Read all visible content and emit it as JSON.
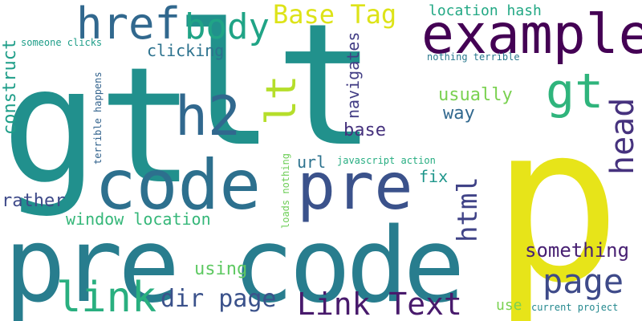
{
  "words": [
    {
      "text": "gt",
      "color": "#21908d",
      "vertical": false
    },
    {
      "text": "lt",
      "color": "#21918c",
      "vertical": false
    },
    {
      "text": "p",
      "color": "#e7e419",
      "vertical": false
    },
    {
      "text": "pre code",
      "color": "#287d8e",
      "vertical": false
    },
    {
      "text": "example",
      "color": "#440154",
      "vertical": false
    },
    {
      "text": "code",
      "color": "#2d708e",
      "vertical": false
    },
    {
      "text": "pre",
      "color": "#3b528b",
      "vertical": false
    },
    {
      "text": "h2",
      "color": "#31688e",
      "vertical": false
    },
    {
      "text": "href",
      "color": "#31688e",
      "vertical": false
    },
    {
      "text": "body",
      "color": "#20a486",
      "vertical": false
    },
    {
      "text": "Base Tag",
      "color": "#dde318",
      "vertical": false
    },
    {
      "text": "location hash",
      "color": "#22a884",
      "vertical": false
    },
    {
      "text": "gt",
      "color": "#2fb47c",
      "vertical": false
    },
    {
      "text": "lt",
      "color": "#b5de2b",
      "vertical": true
    },
    {
      "text": "head",
      "color": "#46327e",
      "vertical": true
    },
    {
      "text": "html",
      "color": "#404387",
      "vertical": true
    },
    {
      "text": "page",
      "color": "#3e4a89",
      "vertical": false
    },
    {
      "text": "link",
      "color": "#29af7f",
      "vertical": false
    },
    {
      "text": "Link Text",
      "color": "#481a6c",
      "vertical": false
    },
    {
      "text": "dir page",
      "color": "#3b528b",
      "vertical": false
    },
    {
      "text": "something",
      "color": "#482173",
      "vertical": false
    },
    {
      "text": "window location",
      "color": "#35b779",
      "vertical": false
    },
    {
      "text": "rather",
      "color": "#3e4a89",
      "vertical": false
    },
    {
      "text": "construct",
      "color": "#1f9e89",
      "vertical": true
    },
    {
      "text": "clicking",
      "color": "#2c728e",
      "vertical": false
    },
    {
      "text": "navigates",
      "color": "#433e85",
      "vertical": true
    },
    {
      "text": "usually",
      "color": "#7ad151",
      "vertical": false
    },
    {
      "text": "way",
      "color": "#31688e",
      "vertical": false
    },
    {
      "text": "base",
      "color": "#46327e",
      "vertical": false
    },
    {
      "text": "url",
      "color": "#2c728e",
      "vertical": false
    },
    {
      "text": "fix",
      "color": "#1f968b",
      "vertical": false
    },
    {
      "text": "using",
      "color": "#5ec962",
      "vertical": false
    },
    {
      "text": "use",
      "color": "#7ad151",
      "vertical": false
    },
    {
      "text": "current project",
      "color": "#23888e",
      "vertical": false
    },
    {
      "text": "someone clicks",
      "color": "#1f9e89",
      "vertical": false
    },
    {
      "text": "nothing terrible",
      "color": "#2a788e",
      "vertical": false
    },
    {
      "text": "terrible happens",
      "color": "#33638d",
      "vertical": true
    },
    {
      "text": "javascript action",
      "color": "#26ad81",
      "vertical": false
    },
    {
      "text": "loads nothing",
      "color": "#6ece58",
      "vertical": true
    }
  ]
}
